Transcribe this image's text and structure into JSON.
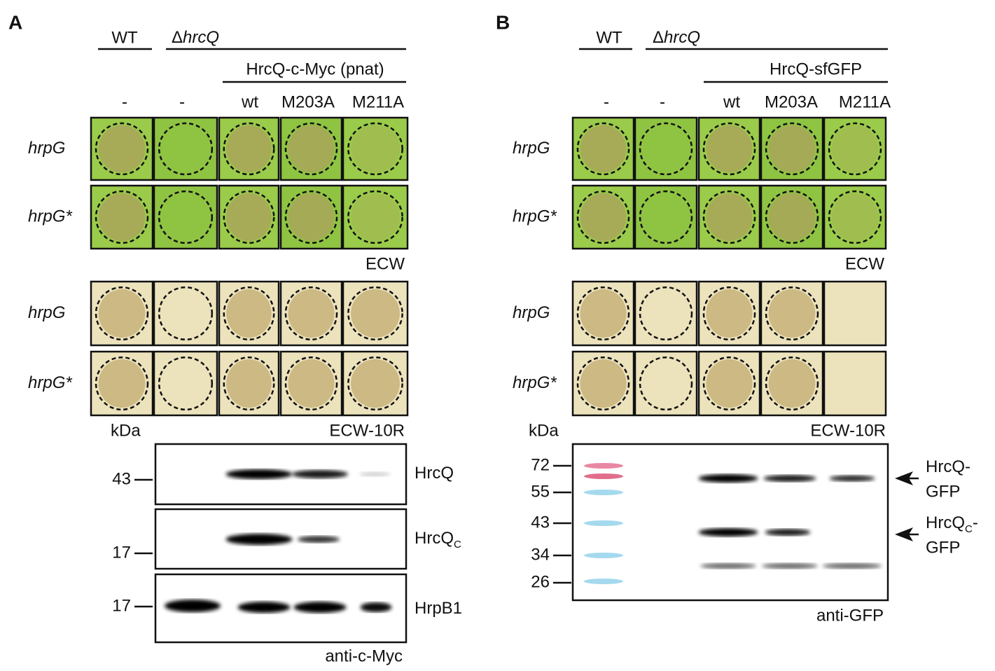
{
  "panel_a": {
    "label": "A",
    "genotype_wt": "WT",
    "genotype_delta": "Δ",
    "genotype_mutant": "hrcQ",
    "construct": "HrcQ-c-Myc (pnat)",
    "columns": [
      "-",
      "-",
      "wt",
      "M203A",
      "M211A"
    ],
    "ecw": {
      "rows": [
        "hrpG",
        "hrpG*"
      ],
      "label": "ECW"
    },
    "ecw_10r": {
      "rows": [
        "hrpG",
        "hrpG*"
      ],
      "label": "ECW-10R"
    },
    "blot": {
      "unit": "kDa",
      "markers": [
        "43",
        "17",
        "17"
      ],
      "bands": [
        {
          "main": "HrcQ"
        },
        {
          "main": "HrcQ",
          "subscript": "C"
        },
        {
          "main": "HrpB1"
        }
      ],
      "antibody": "anti-c-Myc"
    }
  },
  "panel_b": {
    "label": "B",
    "genotype_wt": "WT",
    "genotype_delta": "Δ",
    "genotype_mutant": "hrcQ",
    "construct": "HrcQ-sfGFP",
    "columns": [
      "-",
      "-",
      "wt",
      "M203A",
      "M211A"
    ],
    "ecw": {
      "rows": [
        "hrpG",
        "hrpG*"
      ],
      "label": "ECW"
    },
    "ecw_10r": {
      "rows": [
        "hrpG",
        "hrpG*"
      ],
      "label": "ECW-10R"
    },
    "blot": {
      "unit": "kDa",
      "markers": [
        "72",
        "55",
        "43",
        "34",
        "26"
      ],
      "bands": [
        {
          "main": "HrcQ-",
          "line2": "GFP"
        },
        {
          "main": "HrcQ",
          "subscript": "C",
          "suffix": "-",
          "line2": "GFP"
        }
      ],
      "antibody": "anti-GFP"
    }
  }
}
